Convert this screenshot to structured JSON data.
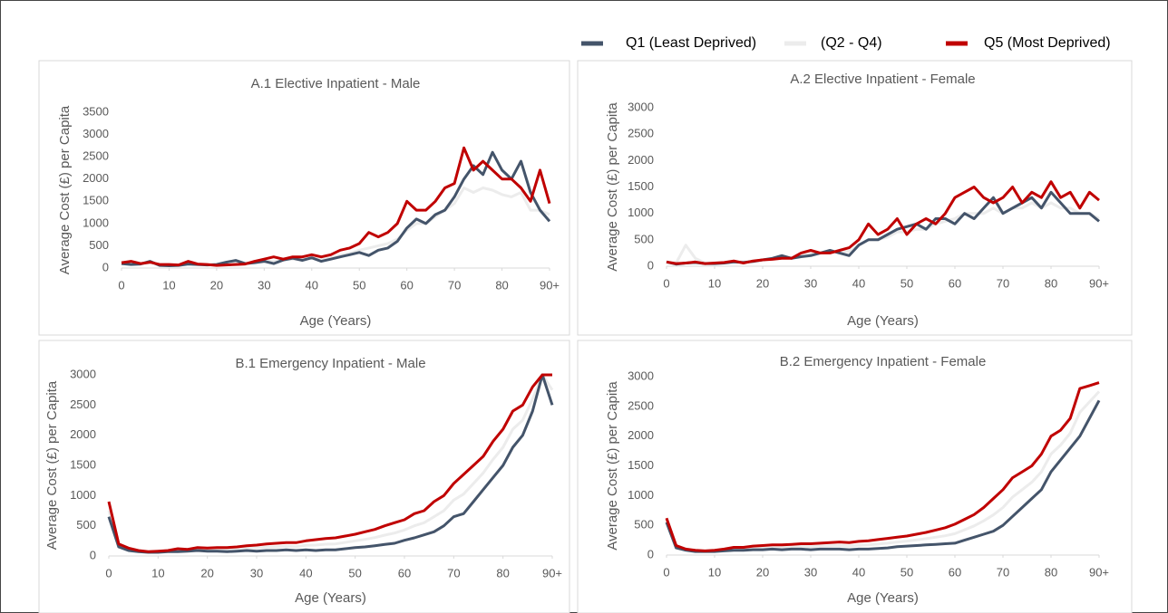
{
  "chart_data": [
    {
      "type": "line",
      "title": "A.1 Elective Inpatient - Male",
      "x_label": "Age (Years)",
      "y_label": "Average Cost (£) per Capita",
      "x": [
        0,
        2,
        4,
        6,
        8,
        10,
        12,
        14,
        16,
        18,
        20,
        22,
        24,
        26,
        28,
        30,
        32,
        34,
        36,
        38,
        40,
        42,
        44,
        46,
        48,
        50,
        52,
        54,
        56,
        58,
        60,
        62,
        64,
        66,
        68,
        70,
        72,
        74,
        76,
        78,
        80,
        82,
        84,
        86,
        88,
        90
      ],
      "xlim": [
        0,
        90
      ],
      "xticks": [
        0,
        10,
        20,
        30,
        40,
        50,
        60,
        70,
        80,
        {
          "value": 90,
          "label": "90+"
        }
      ],
      "ylim": [
        0,
        3500
      ],
      "yticks": [
        0,
        500,
        1000,
        1500,
        2000,
        2500,
        3000,
        3500
      ],
      "series": [
        {
          "name": "(Q2 - Q4)",
          "color": "#ececec",
          "values": [
            100,
            90,
            90,
            120,
            70,
            60,
            60,
            100,
            80,
            70,
            70,
            100,
            120,
            100,
            130,
            160,
            150,
            180,
            200,
            190,
            230,
            200,
            230,
            290,
            330,
            400,
            450,
            500,
            550,
            650,
            850,
            1000,
            1000,
            1150,
            1300,
            1450,
            1800,
            1700,
            1800,
            1750,
            1650,
            1600,
            1700,
            1300,
            1300,
            1200
          ]
        },
        {
          "name": "Q1 (Least Deprived)",
          "color": "#44546a",
          "values": [
            100,
            80,
            90,
            150,
            60,
            50,
            60,
            90,
            80,
            70,
            80,
            130,
            170,
            100,
            120,
            150,
            100,
            180,
            220,
            170,
            230,
            150,
            200,
            250,
            300,
            350,
            280,
            400,
            450,
            600,
            900,
            1100,
            1000,
            1200,
            1300,
            1600,
            2000,
            2300,
            2100,
            2600,
            2200,
            2000,
            2400,
            1700,
            1300,
            1050
          ]
        },
        {
          "name": "Q5 (Most Deprived)",
          "color": "#c00000",
          "values": [
            120,
            150,
            100,
            130,
            80,
            80,
            70,
            150,
            90,
            80,
            60,
            70,
            80,
            90,
            150,
            200,
            250,
            200,
            250,
            250,
            300,
            250,
            300,
            400,
            450,
            550,
            800,
            700,
            800,
            1000,
            1500,
            1300,
            1300,
            1500,
            1800,
            1900,
            2700,
            2200,
            2400,
            2200,
            2000,
            2000,
            1800,
            1500,
            2200,
            1450
          ]
        }
      ]
    },
    {
      "type": "line",
      "title": "A.2 Elective Inpatient - Female",
      "x_label": "Age (Years)",
      "y_label": "Average Cost (£) per Capita",
      "x": [
        0,
        2,
        4,
        6,
        8,
        10,
        12,
        14,
        16,
        18,
        20,
        22,
        24,
        26,
        28,
        30,
        32,
        34,
        36,
        38,
        40,
        42,
        44,
        46,
        48,
        50,
        52,
        54,
        56,
        58,
        60,
        62,
        64,
        66,
        68,
        70,
        72,
        74,
        76,
        78,
        80,
        82,
        84,
        86,
        88,
        90
      ],
      "xlim": [
        0,
        90
      ],
      "xticks": [
        0,
        10,
        20,
        30,
        40,
        50,
        60,
        70,
        80,
        {
          "value": 90,
          "label": "90+"
        }
      ],
      "ylim": [
        0,
        3000
      ],
      "yticks": [
        0,
        500,
        1000,
        1500,
        2000,
        2500,
        3000
      ],
      "series": [
        {
          "name": "(Q2 - Q4)",
          "color": "#ececec",
          "values": [
            80,
            60,
            400,
            150,
            60,
            60,
            70,
            90,
            80,
            90,
            120,
            140,
            180,
            160,
            200,
            250,
            250,
            270,
            280,
            280,
            400,
            500,
            500,
            550,
            650,
            650,
            700,
            700,
            800,
            850,
            900,
            1000,
            1000,
            1000,
            1100,
            1000,
            1100,
            1100,
            1200,
            1100,
            1200,
            1100,
            1100,
            1000,
            1000,
            900
          ]
        },
        {
          "name": "Q1 (Least Deprived)",
          "color": "#44546a",
          "values": [
            80,
            40,
            60,
            70,
            50,
            50,
            60,
            80,
            70,
            90,
            120,
            150,
            200,
            150,
            180,
            200,
            250,
            300,
            250,
            200,
            400,
            500,
            500,
            600,
            700,
            750,
            800,
            700,
            900,
            900,
            800,
            1000,
            900,
            1100,
            1300,
            1000,
            1100,
            1200,
            1300,
            1100,
            1400,
            1200,
            1000,
            1000,
            1000,
            850
          ]
        },
        {
          "name": "Q5 (Most Deprived)",
          "color": "#c00000",
          "values": [
            80,
            50,
            60,
            80,
            50,
            60,
            70,
            100,
            60,
            100,
            120,
            130,
            150,
            150,
            250,
            300,
            250,
            250,
            300,
            350,
            500,
            800,
            600,
            700,
            900,
            600,
            800,
            900,
            800,
            1000,
            1300,
            1400,
            1500,
            1300,
            1200,
            1300,
            1500,
            1200,
            1400,
            1300,
            1600,
            1300,
            1400,
            1100,
            1400,
            1250
          ]
        }
      ]
    },
    {
      "type": "line",
      "title": "B.1 Emergency Inpatient - Male",
      "x_label": "Age (Years)",
      "y_label": "Average Cost (£) per Capita",
      "x": [
        0,
        2,
        4,
        6,
        8,
        10,
        12,
        14,
        16,
        18,
        20,
        22,
        24,
        26,
        28,
        30,
        32,
        34,
        36,
        38,
        40,
        42,
        44,
        46,
        48,
        50,
        52,
        54,
        56,
        58,
        60,
        62,
        64,
        66,
        68,
        70,
        72,
        74,
        76,
        78,
        80,
        82,
        84,
        86,
        88,
        90
      ],
      "xlim": [
        0,
        90
      ],
      "xticks": [
        0,
        10,
        20,
        30,
        40,
        50,
        60,
        70,
        80,
        {
          "value": 90,
          "label": "90+"
        }
      ],
      "ylim": [
        0,
        3000
      ],
      "yticks": [
        0,
        500,
        1000,
        1500,
        2000,
        2500,
        3000
      ],
      "series": [
        {
          "name": "(Q2 - Q4)",
          "color": "#ececec",
          "values": [
            750,
            170,
            110,
            80,
            65,
            70,
            80,
            95,
            95,
            110,
            105,
            110,
            105,
            115,
            130,
            130,
            145,
            150,
            160,
            155,
            175,
            180,
            195,
            200,
            225,
            250,
            275,
            305,
            345,
            380,
            430,
            500,
            550,
            650,
            750,
            925,
            1025,
            1200,
            1375,
            1600,
            1800,
            2100,
            2250,
            2600,
            3000,
            2750
          ]
        },
        {
          "name": "Q1 (Least Deprived)",
          "color": "#44546a",
          "values": [
            650,
            150,
            90,
            70,
            60,
            60,
            70,
            70,
            80,
            90,
            80,
            80,
            70,
            80,
            90,
            80,
            90,
            90,
            100,
            90,
            100,
            90,
            100,
            100,
            120,
            140,
            150,
            170,
            190,
            210,
            260,
            300,
            350,
            400,
            500,
            650,
            700,
            900,
            1100,
            1300,
            1500,
            1800,
            2000,
            2400,
            3000,
            2500
          ]
        },
        {
          "name": "Q5 (Most Deprived)",
          "color": "#c00000",
          "values": [
            900,
            200,
            130,
            90,
            70,
            80,
            90,
            120,
            110,
            140,
            130,
            140,
            140,
            150,
            170,
            180,
            200,
            210,
            220,
            220,
            250,
            270,
            290,
            300,
            330,
            360,
            400,
            440,
            500,
            550,
            600,
            700,
            750,
            900,
            1000,
            1200,
            1350,
            1500,
            1650,
            1900,
            2100,
            2400,
            2500,
            2800,
            3000,
            3000
          ]
        }
      ]
    },
    {
      "type": "line",
      "title": "B.2 Emergency Inpatient - Female",
      "x_label": "Age (Years)",
      "y_label": "Average Cost (£) per Capita",
      "x": [
        0,
        2,
        4,
        6,
        8,
        10,
        12,
        14,
        16,
        18,
        20,
        22,
        24,
        26,
        28,
        30,
        32,
        34,
        36,
        38,
        40,
        42,
        44,
        46,
        48,
        50,
        52,
        54,
        56,
        58,
        60,
        62,
        64,
        66,
        68,
        70,
        72,
        74,
        76,
        78,
        80,
        82,
        84,
        86,
        88,
        90
      ],
      "xlim": [
        0,
        90
      ],
      "xticks": [
        0,
        10,
        20,
        30,
        40,
        50,
        60,
        70,
        80,
        {
          "value": 90,
          "label": "90+"
        }
      ],
      "ylim": [
        0,
        3000
      ],
      "yticks": [
        0,
        500,
        1000,
        1500,
        2000,
        2500,
        3000
      ],
      "series": [
        {
          "name": "(Q2 - Q4)",
          "color": "#ececec",
          "values": [
            580,
            140,
            90,
            70,
            65,
            70,
            85,
            105,
            105,
            120,
            125,
            135,
            130,
            140,
            145,
            140,
            150,
            155,
            160,
            150,
            165,
            170,
            185,
            200,
            220,
            235,
            255,
            275,
            300,
            325,
            360,
            425,
            490,
            575,
            675,
            800,
            975,
            1100,
            1225,
            1400,
            1700,
            1850,
            2050,
            2400,
            2575,
            2750
          ]
        },
        {
          "name": "Q1 (Least Deprived)",
          "color": "#44546a",
          "values": [
            550,
            120,
            80,
            60,
            60,
            60,
            70,
            80,
            80,
            90,
            90,
            100,
            90,
            100,
            100,
            90,
            100,
            100,
            100,
            90,
            100,
            100,
            110,
            120,
            140,
            150,
            160,
            170,
            180,
            190,
            200,
            250,
            300,
            350,
            400,
            500,
            650,
            800,
            950,
            1100,
            1400,
            1600,
            1800,
            2000,
            2300,
            2600
          ]
        },
        {
          "name": "Q5 (Most Deprived)",
          "color": "#c00000",
          "values": [
            620,
            160,
            100,
            80,
            70,
            80,
            100,
            130,
            130,
            150,
            160,
            170,
            170,
            180,
            190,
            190,
            200,
            210,
            220,
            210,
            230,
            240,
            260,
            280,
            300,
            320,
            350,
            380,
            420,
            460,
            520,
            600,
            680,
            800,
            950,
            1100,
            1300,
            1400,
            1500,
            1700,
            2000,
            2100,
            2300,
            2800,
            2850,
            2900
          ]
        }
      ]
    }
  ]
}
